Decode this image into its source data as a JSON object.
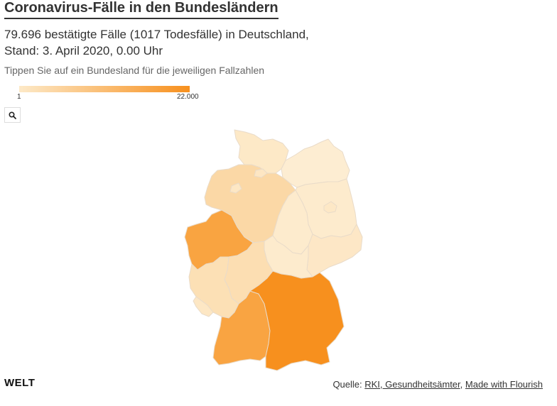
{
  "header": {
    "title": "Coronavirus-Fälle in den Bundesländern",
    "subtitle_line1": "79.696 bestätigte Fälle (1017 Todesfälle) in Deutschland,",
    "subtitle_line2": "Stand: 3. April 2020, 0.00 Uhr",
    "note": "Tippen Sie auf ein Bundesland für die jeweiligen Fallzahlen"
  },
  "legend": {
    "min": "1",
    "max": "22.000",
    "color_low": "#fde9c7",
    "color_high": "#f7901e"
  },
  "controls": {
    "search_icon": "search-icon"
  },
  "map": {
    "colors": {
      "schleswig-holstein": "#fde9c7",
      "hamburg": "#fde6c3",
      "bremen": "#fde7c4",
      "niedersachsen": "#fbd8a6",
      "mecklenburg-vorpommern": "#fdedd2",
      "berlin": "#fde8c6",
      "brandenburg": "#fdebcd",
      "sachsen-anhalt": "#fdebcd",
      "sachsen": "#fde7c6",
      "thueringen": "#fdebcd",
      "nordrhein-westfalen": "#f9a441",
      "hessen": "#fcdeb2",
      "rheinland-pfalz": "#fce0b5",
      "saarland": "#fde7c4",
      "baden-wuerttemberg": "#f9a442",
      "bayern": "#f7901e"
    }
  },
  "footer": {
    "logo": "WELT",
    "source_prefix": "Quelle: ",
    "link_rki": "RKI, Gesundheitsämter",
    "separator": ", ",
    "link_flourish": "Made with Flourish"
  }
}
